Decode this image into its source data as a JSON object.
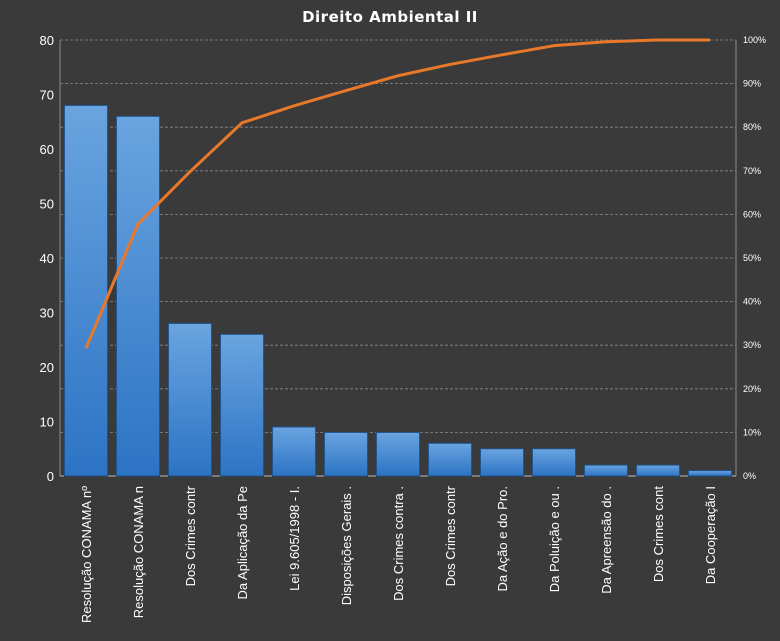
{
  "chart_data": {
    "type": "bar",
    "title": "Direito  Ambiental  II",
    "categories": [
      "Resolução CONAMA nº",
      "Resolução CONAMA n",
      "Dos Crimes contr",
      "Da Aplicação da Pe",
      "Lei 9.605/1998 - I.",
      "Disposições Gerais .",
      "Dos Crimes contra .",
      "Dos Crimes contr",
      "Da Ação e do Pro.",
      "Da Poluição e ou .",
      "Da Apreensão do .",
      "Dos Crimes cont",
      "Da Cooperação I"
    ],
    "series": [
      {
        "type": "bar",
        "values": [
          68,
          66,
          28,
          26,
          9,
          8,
          8,
          6,
          5,
          5,
          2,
          2,
          1
        ]
      },
      {
        "type": "line",
        "axis": "right",
        "values": [
          29.3,
          57.8,
          69.8,
          81.0,
          84.9,
          88.4,
          91.8,
          94.4,
          96.6,
          98.7,
          99.6,
          100.0,
          100.0
        ]
      }
    ],
    "ylim": [
      0,
      80
    ],
    "y_ticks": [
      "0",
      "10",
      "20",
      "30",
      "40",
      "50",
      "60",
      "70",
      "80"
    ],
    "y2lim": [
      0,
      100
    ],
    "y2_ticks": [
      "0%",
      "10%",
      "20%",
      "30%",
      "40%",
      "50%",
      "60%",
      "70%",
      "80%",
      "90%",
      "100%"
    ],
    "grid": true,
    "colors": {
      "background": "#3a3a3a",
      "bar_top": "#6aa4e0",
      "bar_bottom": "#2c74c4",
      "line": "#e8782a",
      "grid": "#8a8a8a",
      "text": "#ffffff"
    }
  }
}
